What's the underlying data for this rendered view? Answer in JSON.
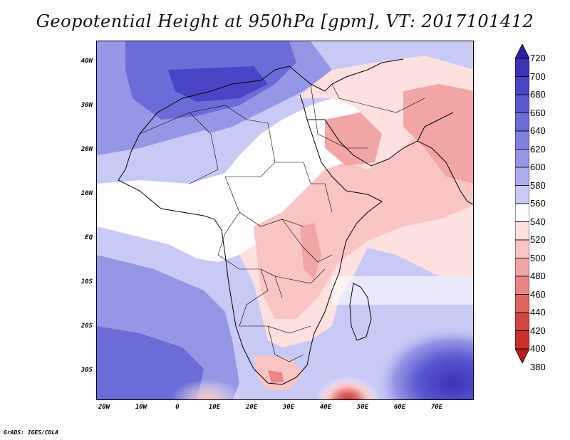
{
  "title": "Geopotential Height at 950hPa [gpm], VT: 2017101412",
  "credit": "GrADS: IGES/COLA",
  "map": {
    "lat_labels": [
      "40N",
      "30N",
      "20N",
      "10N",
      "EQ",
      "10S",
      "20S",
      "30S"
    ],
    "lat_values": [
      40,
      30,
      20,
      10,
      0,
      -10,
      -20,
      -30
    ],
    "lon_labels": [
      "20W",
      "10W",
      "0",
      "10E",
      "20E",
      "30E",
      "40E",
      "50E",
      "60E",
      "70E"
    ],
    "lon_values": [
      -20,
      -10,
      0,
      10,
      20,
      30,
      40,
      50,
      60,
      70
    ],
    "extent": {
      "lon_min": -22,
      "lon_max": 80,
      "lat_min": -37,
      "lat_max": 45
    },
    "land_color": "#000000"
  },
  "colorbar": {
    "levels": [
      "720",
      "700",
      "680",
      "660",
      "640",
      "620",
      "600",
      "580",
      "560",
      "540",
      "520",
      "500",
      "480",
      "460",
      "440",
      "420",
      "400",
      "380"
    ],
    "colors": [
      "#2a1fa6",
      "#3b32b8",
      "#4a45c6",
      "#5a58d0",
      "#6b6cd8",
      "#7f80e0",
      "#9596e6",
      "#aeaeee",
      "#c9c9f5",
      "#ffffff",
      "#fde0e0",
      "#f9c4c4",
      "#f2a5a5",
      "#ea8585",
      "#e06464",
      "#d54545",
      "#c92f2f",
      "#b81c1c"
    ]
  }
}
